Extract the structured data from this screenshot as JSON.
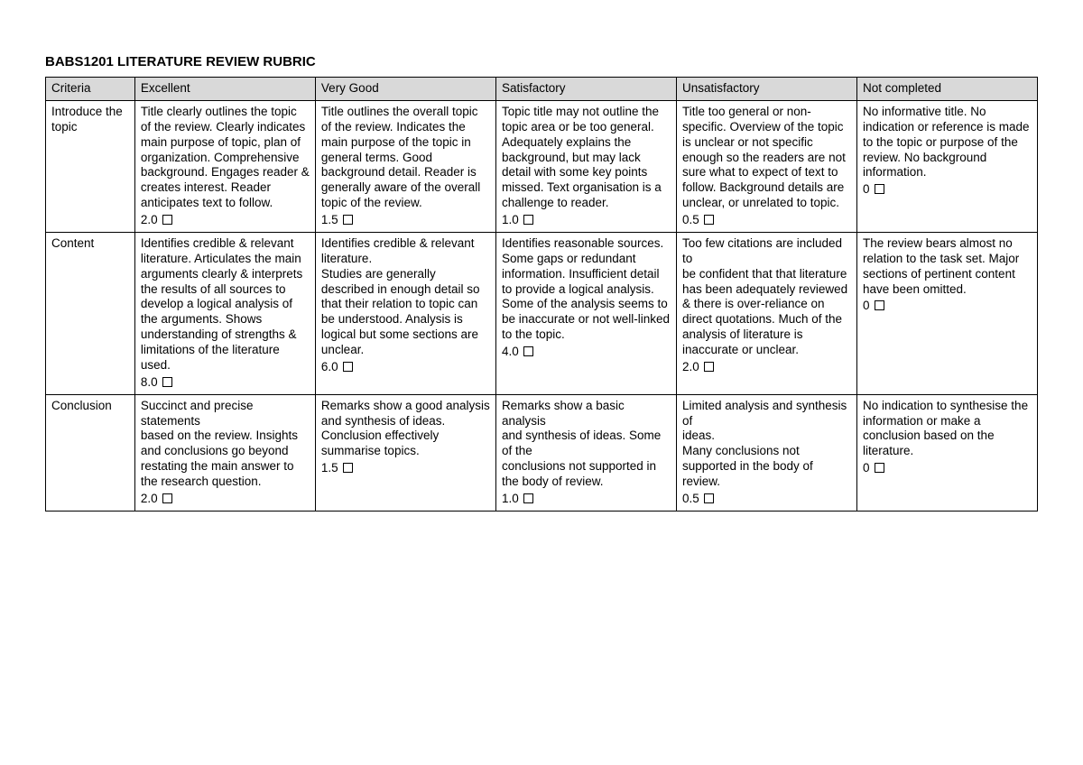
{
  "title": "BABS1201 LITERATURE REVIEW RUBRIC",
  "headers": {
    "criteria": "Criteria",
    "excellent": "Excellent",
    "verygood": "Very Good",
    "satisfactory": "Satisfactory",
    "unsatisfactory": "Unsatisfactory",
    "notcompleted": "Not completed"
  },
  "rows": [
    {
      "criteria": "Introduce the topic",
      "excellent": {
        "text": "Title clearly outlines the topic of the review. Clearly indicates main purpose of topic, plan of organization. Comprehensive background. Engages reader & creates interest. Reader anticipates text to follow.",
        "score": "2.0"
      },
      "verygood": {
        "text": "Title outlines the overall topic of the review. Indicates the main purpose of the topic in general terms. Good background detail. Reader is generally aware of the overall topic of the review.",
        "score": "1.5"
      },
      "satisfactory": {
        "text": "Topic title may not outline the topic area or be too general. Adequately explains the background, but may lack detail with some key points missed. Text organisation is a challenge to reader.",
        "score": "1.0"
      },
      "unsatisfactory": {
        "text": "Title too general or non-specific. Overview of the topic is unclear or not specific enough so the readers are not sure what to expect of text to follow. Background details are unclear, or unrelated to topic.",
        "score": "0.5"
      },
      "notcompleted": {
        "text": "No informative title. No indication or reference is made to the topic or purpose of the review. No background information.",
        "score": "0"
      }
    },
    {
      "criteria": "Content",
      "excellent": {
        "text": "Identifies credible & relevant literature. Articulates the main arguments clearly & interprets the results of all sources to develop a logical analysis of the arguments. Shows understanding of strengths & limitations of the literature used.",
        "score": "8.0"
      },
      "verygood": {
        "text": "Identifies credible & relevant\nliterature.\nStudies are generally described in enough detail so that their relation to topic can be understood. Analysis is logical but some sections are unclear.",
        "score": "6.0"
      },
      "satisfactory": {
        "text": "Identifies reasonable sources. Some gaps or redundant information. Insufficient detail to provide a logical analysis. Some of the analysis seems to be inaccurate or not well-linked to the topic.",
        "score": "4.0"
      },
      "unsatisfactory": {
        "text": "Too few citations are included to\nbe confident that that literature has been adequately reviewed & there is over-reliance on direct quotations. Much of the analysis of literature is inaccurate or unclear.",
        "score": "2.0"
      },
      "notcompleted": {
        "text": "The review bears almost no\nrelation to the task set. Major sections of pertinent content have been omitted.",
        "score": "0"
      }
    },
    {
      "criteria": "Conclusion",
      "excellent": {
        "text": "Succinct and precise statements\nbased on the review. Insights and conclusions go beyond restating the main answer to the research question.",
        "score": "2.0"
      },
      "verygood": {
        "text": "Remarks show a good analysis\nand synthesis of ideas. Conclusion effectively summarise topics.",
        "score": "1.5"
      },
      "satisfactory": {
        "text": "Remarks show a basic analysis\nand synthesis of ideas. Some of the\nconclusions not supported in the body of review.",
        "score": "1.0"
      },
      "unsatisfactory": {
        "text": "Limited analysis and synthesis of\nideas.\nMany conclusions not supported in the body of review.",
        "score": "0.5"
      },
      "notcompleted": {
        "text": "No indication to synthesise the information or make a conclusion based on the literature.",
        "score": "0"
      }
    }
  ]
}
